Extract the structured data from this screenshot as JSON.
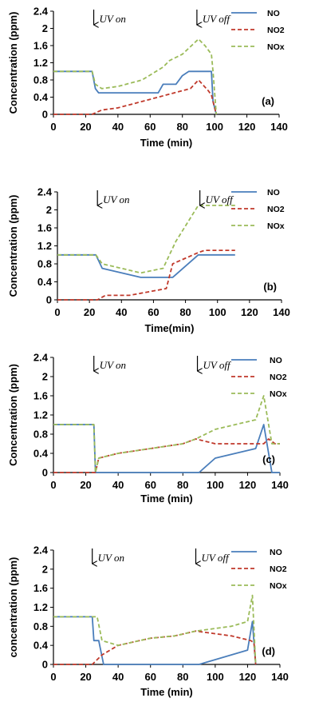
{
  "colors": {
    "NO": "#4a7ebb",
    "NO2": "#c0392b",
    "NOx": "#9bbb59",
    "axis": "#000000"
  },
  "chart_data": [
    {
      "type": "line",
      "panel_label": "(a)",
      "xlabel": "Time (min)",
      "ylabel": "Concentration (ppm)",
      "xlim": [
        0,
        140
      ],
      "ylim": [
        0,
        2.4
      ],
      "xticks": [
        "0",
        "20",
        "40",
        "60",
        "80",
        "100",
        "120",
        "140"
      ],
      "yticks": [
        "0",
        "0.4",
        "0.8",
        "1.2",
        "1.6",
        "2",
        "2.4"
      ],
      "grid": false,
      "legend": "top-right",
      "annotations": [
        {
          "text": "UV on",
          "x": 25
        },
        {
          "text": "UV off",
          "x": 89
        }
      ],
      "series": [
        {
          "name": "NO",
          "style": "solid",
          "color": "NO",
          "points": [
            [
              0,
              1.0
            ],
            [
              24,
              1.0
            ],
            [
              26,
              0.6
            ],
            [
              28,
              0.5
            ],
            [
              65,
              0.5
            ],
            [
              68,
              0.7
            ],
            [
              76,
              0.7
            ],
            [
              80,
              0.9
            ],
            [
              84,
              1.0
            ],
            [
              98,
              1.0
            ],
            [
              99,
              0.3
            ],
            [
              101,
              0.0
            ]
          ]
        },
        {
          "name": "NO2",
          "style": "dashed",
          "color": "NO2",
          "points": [
            [
              0,
              0
            ],
            [
              24,
              0
            ],
            [
              30,
              0.1
            ],
            [
              40,
              0.15
            ],
            [
              60,
              0.35
            ],
            [
              75,
              0.5
            ],
            [
              85,
              0.6
            ],
            [
              90,
              0.8
            ],
            [
              96,
              0.55
            ],
            [
              98,
              0.45
            ],
            [
              101,
              0.0
            ]
          ]
        },
        {
          "name": "NOx",
          "style": "dashed",
          "color": "NOx",
          "points": [
            [
              0,
              1.0
            ],
            [
              24,
              1.0
            ],
            [
              26,
              0.7
            ],
            [
              30,
              0.6
            ],
            [
              40,
              0.65
            ],
            [
              55,
              0.8
            ],
            [
              68,
              1.1
            ],
            [
              72,
              1.25
            ],
            [
              80,
              1.4
            ],
            [
              90,
              1.75
            ],
            [
              94,
              1.6
            ],
            [
              98,
              1.4
            ],
            [
              99,
              1.0
            ],
            [
              101,
              0.0
            ]
          ]
        }
      ]
    },
    {
      "type": "line",
      "panel_label": "(b)",
      "xlabel": "Time(min)",
      "ylabel": "Concentration (ppm)",
      "xlim": [
        0,
        140
      ],
      "ylim": [
        0,
        2.4
      ],
      "xticks": [
        "0",
        "20",
        "40",
        "60",
        "80",
        "100",
        "120",
        "140"
      ],
      "yticks": [
        "0",
        "0.4",
        "0.8",
        "1.2",
        "1.6",
        "2",
        "2.4"
      ],
      "grid": false,
      "legend": "top-right",
      "annotations": [
        {
          "text": "UV on",
          "x": 25
        },
        {
          "text": "UV off",
          "x": 89
        }
      ],
      "series": [
        {
          "name": "NO",
          "style": "solid",
          "color": "NO",
          "points": [
            [
              0,
              1.0
            ],
            [
              24,
              1.0
            ],
            [
              28,
              0.7
            ],
            [
              40,
              0.6
            ],
            [
              52,
              0.5
            ],
            [
              72,
              0.5
            ],
            [
              88,
              1.0
            ],
            [
              111,
              1.0
            ]
          ]
        },
        {
          "name": "NO2",
          "style": "dashed",
          "color": "NO2",
          "points": [
            [
              0,
              0
            ],
            [
              25,
              0
            ],
            [
              30,
              0.1
            ],
            [
              45,
              0.1
            ],
            [
              68,
              0.25
            ],
            [
              72,
              0.8
            ],
            [
              88,
              1.05
            ],
            [
              92,
              1.1
            ],
            [
              111,
              1.1
            ]
          ]
        },
        {
          "name": "NOx",
          "style": "dashed",
          "color": "NOx",
          "points": [
            [
              0,
              1.0
            ],
            [
              24,
              1.0
            ],
            [
              28,
              0.8
            ],
            [
              40,
              0.7
            ],
            [
              52,
              0.6
            ],
            [
              66,
              0.7
            ],
            [
              74,
              1.3
            ],
            [
              88,
              2.1
            ],
            [
              111,
              2.1
            ]
          ]
        }
      ]
    },
    {
      "type": "line",
      "panel_label": "(c)",
      "xlabel": "Time (min)",
      "ylabel": "Concentration (ppm)",
      "xlim": [
        0,
        140
      ],
      "ylim": [
        0,
        2.4
      ],
      "xticks": [
        "0",
        "20",
        "40",
        "60",
        "80",
        "100",
        "120",
        "140"
      ],
      "yticks": [
        "0",
        "0.4",
        "0.8",
        "1.2",
        "1.6",
        "2",
        "2.4"
      ],
      "grid": false,
      "legend": "top-right",
      "annotations": [
        {
          "text": "UV on",
          "x": 25
        },
        {
          "text": "UV off",
          "x": 89
        }
      ],
      "series": [
        {
          "name": "NO",
          "style": "solid",
          "color": "NO",
          "points": [
            [
              0,
              1.0
            ],
            [
              25,
              1.0
            ],
            [
              26,
              0.0
            ],
            [
              90,
              0.0
            ],
            [
              100,
              0.3
            ],
            [
              125,
              0.5
            ],
            [
              130,
              1.0
            ],
            [
              135,
              0.0
            ],
            [
              140,
              0.0
            ]
          ]
        },
        {
          "name": "NO2",
          "style": "dashed",
          "color": "NO2",
          "points": [
            [
              0,
              0
            ],
            [
              26,
              0
            ],
            [
              28,
              0.3
            ],
            [
              40,
              0.4
            ],
            [
              60,
              0.5
            ],
            [
              80,
              0.6
            ],
            [
              88,
              0.7
            ],
            [
              100,
              0.6
            ],
            [
              130,
              0.6
            ],
            [
              133,
              0.7
            ],
            [
              137,
              0.6
            ],
            [
              140,
              0.6
            ]
          ]
        },
        {
          "name": "NOx",
          "style": "dashed",
          "color": "NOx",
          "points": [
            [
              0,
              1.0
            ],
            [
              25,
              1.0
            ],
            [
              26,
              0.0
            ],
            [
              28,
              0.3
            ],
            [
              40,
              0.4
            ],
            [
              60,
              0.5
            ],
            [
              80,
              0.6
            ],
            [
              88,
              0.7
            ],
            [
              100,
              0.9
            ],
            [
              125,
              1.1
            ],
            [
              130,
              1.6
            ],
            [
              135,
              0.6
            ],
            [
              140,
              0.6
            ]
          ]
        }
      ]
    },
    {
      "type": "line",
      "panel_label": "(d)",
      "xlabel": "Time (min)",
      "ylabel": "concentration (ppm)",
      "xlim": [
        0,
        140
      ],
      "ylim": [
        0,
        2.4
      ],
      "xticks": [
        "0",
        "20",
        "40",
        "60",
        "80",
        "100",
        "120",
        "140"
      ],
      "yticks": [
        "0",
        "0.4",
        "0.8",
        "1.2",
        "1.6",
        "2",
        "2.4"
      ],
      "grid": false,
      "legend": "top-right",
      "annotations": [
        {
          "text": "UV on",
          "x": 24
        },
        {
          "text": "UV off",
          "x": 88
        }
      ],
      "series": [
        {
          "name": "NO",
          "style": "solid",
          "color": "NO",
          "points": [
            [
              0,
              1.0
            ],
            [
              24,
              1.0
            ],
            [
              25,
              0.5
            ],
            [
              28,
              0.5
            ],
            [
              31,
              0.0
            ],
            [
              90,
              0.0
            ],
            [
              120,
              0.3
            ],
            [
              123,
              0.9
            ],
            [
              125,
              0.0
            ]
          ]
        },
        {
          "name": "NO2",
          "style": "dashed",
          "color": "NO2",
          "points": [
            [
              0,
              0
            ],
            [
              24,
              0
            ],
            [
              30,
              0.2
            ],
            [
              40,
              0.4
            ],
            [
              60,
              0.55
            ],
            [
              75,
              0.6
            ],
            [
              88,
              0.7
            ],
            [
              110,
              0.6
            ],
            [
              122,
              0.5
            ],
            [
              124,
              0.45
            ],
            [
              125,
              0.0
            ]
          ]
        },
        {
          "name": "NOx",
          "style": "dashed",
          "color": "NOx",
          "points": [
            [
              0,
              1.0
            ],
            [
              24,
              1.0
            ],
            [
              27,
              1.0
            ],
            [
              30,
              0.5
            ],
            [
              40,
              0.4
            ],
            [
              60,
              0.55
            ],
            [
              75,
              0.6
            ],
            [
              88,
              0.7
            ],
            [
              110,
              0.8
            ],
            [
              120,
              0.9
            ],
            [
              123,
              1.45
            ],
            [
              125,
              0.0
            ]
          ]
        }
      ]
    }
  ]
}
